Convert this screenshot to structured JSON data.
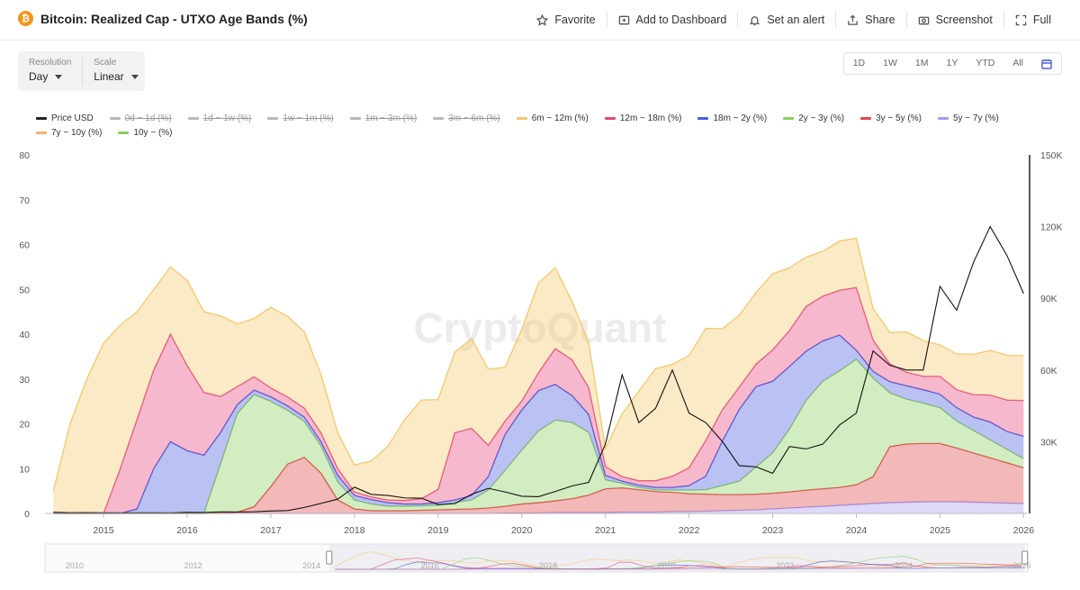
{
  "header": {
    "title": "Bitcoin: Realized Cap - UTXO Age Bands (%)",
    "logo": "₿",
    "actions": [
      {
        "label": "Favorite",
        "icon": "star-icon"
      },
      {
        "label": "Add to Dashboard",
        "icon": "dashboard-add-icon"
      },
      {
        "label": "Set an alert",
        "icon": "bell-icon"
      },
      {
        "label": "Share",
        "icon": "share-icon"
      },
      {
        "label": "Screenshot",
        "icon": "camera-icon"
      },
      {
        "label": "Full",
        "icon": "fullscreen-icon"
      }
    ]
  },
  "controls": {
    "resolution": {
      "label": "Resolution",
      "value": "Day"
    },
    "scale": {
      "label": "Scale",
      "value": "Linear"
    }
  },
  "ranges": [
    "1D",
    "1W",
    "1M",
    "1Y",
    "YTD",
    "All"
  ],
  "watermark": "CryptoQuant",
  "legend": [
    {
      "label": "Price USD",
      "color": "#222222",
      "active": true
    },
    {
      "label": "0d ~ 1d (%)",
      "color": "#b8b8b8",
      "active": false
    },
    {
      "label": "1d ~ 1w (%)",
      "color": "#b8b8b8",
      "active": false
    },
    {
      "label": "1w ~ 1m (%)",
      "color": "#b8b8b8",
      "active": false
    },
    {
      "label": "1m ~ 3m (%)",
      "color": "#b8b8b8",
      "active": false
    },
    {
      "label": "3m ~ 6m (%)",
      "color": "#b8b8b8",
      "active": false
    },
    {
      "label": "6m ~ 12m (%)",
      "color": "#f5c86a",
      "active": true
    },
    {
      "label": "12m ~ 18m (%)",
      "color": "#e8457c",
      "active": true
    },
    {
      "label": "18m ~ 2y (%)",
      "color": "#4a5de0",
      "active": true
    },
    {
      "label": "2y ~ 3y (%)",
      "color": "#8ccf5f",
      "active": true
    },
    {
      "label": "3y ~ 5y (%)",
      "color": "#e04848",
      "active": true
    },
    {
      "label": "5y ~ 7y (%)",
      "color": "#a89af0",
      "active": true
    },
    {
      "label": "7y ~ 10y (%)",
      "color": "#f5b46a",
      "active": true
    },
    {
      "label": "10y ~ (%)",
      "color": "#8ccf5f",
      "active": true
    }
  ],
  "chart_data": {
    "type": "area",
    "stacked": true,
    "x": [
      2014.4,
      2014.6,
      2014.8,
      2015.0,
      2015.2,
      2015.4,
      2015.6,
      2015.8,
      2016.0,
      2016.2,
      2016.4,
      2016.6,
      2016.8,
      2017.0,
      2017.2,
      2017.4,
      2017.6,
      2017.8,
      2018.0,
      2018.2,
      2018.4,
      2018.6,
      2018.8,
      2019.0,
      2019.2,
      2019.4,
      2019.6,
      2019.8,
      2020.0,
      2020.2,
      2020.4,
      2020.6,
      2020.8,
      2021.0,
      2021.2,
      2021.4,
      2021.6,
      2021.8,
      2022.0,
      2022.2,
      2022.4,
      2022.6,
      2022.8,
      2023.0,
      2023.2,
      2023.4,
      2023.6,
      2023.8,
      2024.0,
      2024.2,
      2024.4,
      2024.6,
      2024.8,
      2025.0,
      2025.2,
      2025.4,
      2025.6,
      2025.8,
      2026.0
    ],
    "series": [
      {
        "name": "5y ~ 7y (%)",
        "color": "#a89af0",
        "values": [
          0,
          0,
          0,
          0,
          0,
          0,
          0,
          0,
          0,
          0,
          0,
          0,
          0,
          0,
          0,
          0,
          0,
          0,
          0,
          0,
          0,
          0,
          0,
          0,
          0,
          0,
          0,
          0.1,
          0.1,
          0.1,
          0.2,
          0.2,
          0.2,
          0.2,
          0.3,
          0.3,
          0.3,
          0.4,
          0.4,
          0.5,
          0.6,
          0.7,
          0.8,
          1.0,
          1.2,
          1.4,
          1.6,
          1.8,
          2.0,
          2.2,
          2.4,
          2.5,
          2.6,
          2.6,
          2.6,
          2.5,
          2.4,
          2.3,
          2.2
        ]
      },
      {
        "name": "3y ~ 5y (%)",
        "color": "#e04848",
        "values": [
          0,
          0,
          0,
          0,
          0,
          0,
          0,
          0,
          0,
          0,
          0.1,
          0.3,
          1.5,
          6,
          11,
          12.5,
          9,
          3,
          1,
          0.6,
          0.6,
          0.6,
          0.7,
          0.8,
          0.9,
          1.0,
          1.2,
          1.5,
          2.0,
          2.3,
          2.6,
          3.1,
          3.9,
          5.3,
          5.4,
          5.0,
          4.6,
          4.3,
          4.0,
          3.8,
          3.6,
          3.5,
          3.5,
          3.5,
          3.6,
          3.8,
          3.9,
          4.0,
          4.4,
          6.0,
          12.5,
          13.0,
          13.0,
          13.0,
          12.0,
          11.0,
          10.0,
          9.0,
          8.0
        ]
      },
      {
        "name": "2y ~ 3y (%)",
        "color": "#8ccf5f",
        "values": [
          0,
          0,
          0,
          0,
          0,
          0,
          0,
          0,
          0,
          0,
          11,
          22,
          25,
          19,
          12,
          8,
          6,
          4,
          2,
          1.5,
          1.0,
          1.0,
          1.0,
          1.0,
          1.5,
          2,
          4,
          8,
          12,
          16,
          18,
          17,
          14,
          2,
          1,
          0.5,
          0.4,
          0.5,
          0.8,
          1.0,
          2,
          3,
          6,
          9,
          14,
          20,
          24,
          26,
          28,
          22,
          12,
          10,
          9,
          8,
          6,
          5,
          4,
          3,
          2
        ]
      },
      {
        "name": "18m ~ 2y (%)",
        "color": "#4a5de0",
        "values": [
          0,
          0,
          0,
          0,
          0,
          1,
          10,
          16,
          14,
          13,
          7,
          2,
          1,
          1,
          1,
          1,
          1,
          1.5,
          1.0,
          1.0,
          0.8,
          0.5,
          0.4,
          0.6,
          0.6,
          1,
          3,
          8,
          9,
          9,
          8,
          6,
          4,
          1,
          0.5,
          0.5,
          0.5,
          0.6,
          1,
          3,
          10,
          16,
          18,
          16,
          14,
          11,
          9,
          8,
          2,
          1.5,
          2.5,
          3,
          3,
          3,
          3,
          3,
          4,
          4,
          5
        ]
      },
      {
        "name": "12m ~ 18m (%)",
        "color": "#e8457c",
        "values": [
          0,
          0,
          0,
          0,
          10,
          20,
          22,
          24,
          19,
          14,
          8,
          4,
          3,
          2,
          2,
          2,
          2,
          1.5,
          0.8,
          0.6,
          0.6,
          0.8,
          1.2,
          3,
          15,
          15,
          7,
          3,
          2,
          4,
          8,
          8,
          6,
          2,
          1,
          1,
          1.5,
          2.5,
          4,
          8,
          7,
          5,
          5,
          7,
          8,
          10,
          10,
          10,
          14,
          7,
          4,
          3,
          3,
          4,
          4,
          5,
          6,
          7,
          8
        ]
      },
      {
        "name": "6m ~ 12m (%)",
        "color": "#f5c86a",
        "values": [
          5,
          20,
          30,
          38,
          32,
          24,
          18,
          15,
          19,
          18,
          18,
          14,
          13,
          18,
          18,
          17,
          13,
          8,
          6,
          8,
          12,
          18,
          22,
          20,
          18,
          20,
          17,
          12,
          16,
          20,
          18,
          13,
          10,
          4,
          14,
          20,
          25,
          25,
          25,
          25,
          18,
          16,
          16,
          17,
          14,
          11,
          10,
          11,
          11,
          7,
          7,
          9,
          8,
          7,
          8,
          9,
          10,
          10,
          10
        ]
      }
    ],
    "price": {
      "name": "Price USD",
      "color": "#111111",
      "values": [
        500,
        300,
        350,
        260,
        240,
        250,
        270,
        240,
        430,
        410,
        640,
        600,
        700,
        1000,
        1200,
        2500,
        4200,
        6000,
        11000,
        8000,
        7500,
        6500,
        6400,
        3700,
        4100,
        8000,
        10500,
        9000,
        7200,
        7000,
        9200,
        11500,
        13000,
        29000,
        58000,
        38000,
        44000,
        60000,
        42000,
        38000,
        30000,
        20000,
        19500,
        16800,
        28000,
        27000,
        29000,
        37000,
        42000,
        68000,
        62000,
        60000,
        60000,
        95000,
        85000,
        105000,
        120000,
        108000,
        92000
      ]
    },
    "ylim": [
      0,
      80
    ],
    "y2lim": [
      0,
      150000
    ],
    "yticks": [
      0,
      10,
      20,
      30,
      40,
      50,
      60,
      70,
      80
    ],
    "y2ticks": [
      "30K",
      "60K",
      "90K",
      "120K",
      "150K"
    ],
    "xticks": [
      "2015",
      "2016",
      "2017",
      "2018",
      "2019",
      "2020",
      "2021",
      "2022",
      "2023",
      "2024",
      "2025",
      "2026"
    ],
    "navigator_ticks": [
      "2010",
      "2012",
      "2014",
      "2016",
      "2018",
      "2020",
      "2022",
      "2024",
      "2026"
    ],
    "grid": false,
    "legend_position": "top-left"
  }
}
